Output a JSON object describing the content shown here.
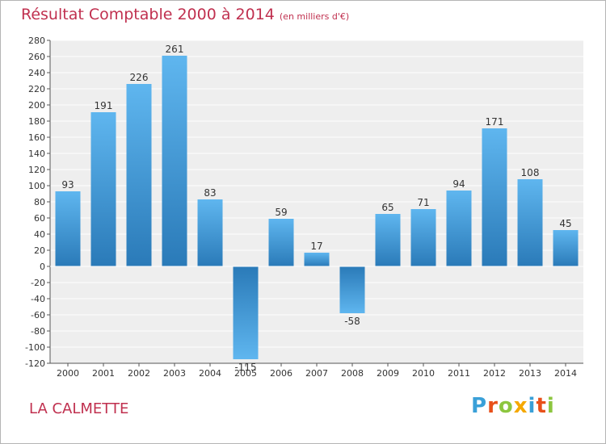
{
  "title": {
    "main": "Résultat Comptable 2000 à 2014",
    "unit": "(en milliers d'€)"
  },
  "commune": "LA CALMETTE",
  "logo": {
    "letters": [
      "P",
      "r",
      "o",
      "x",
      "i",
      "t",
      "i"
    ],
    "colors": [
      "#3aa0d8",
      "#e8501a",
      "#8cc63f",
      "#f5a800",
      "#3aa0d8",
      "#e8501a",
      "#8cc63f"
    ]
  },
  "colors": {
    "accent": "#c0304f",
    "bar_dark": "#2a7ab8",
    "bar_light": "#5fb6ef",
    "plot_bg": "#eeeeee",
    "grid": "#ffffff"
  },
  "chart_data": {
    "type": "bar",
    "title": "Résultat Comptable 2000 à 2014",
    "xlabel": "",
    "ylabel": "",
    "categories": [
      "2000",
      "2001",
      "2002",
      "2003",
      "2004",
      "2005",
      "2006",
      "2007",
      "2008",
      "2009",
      "2010",
      "2011",
      "2012",
      "2013",
      "2014"
    ],
    "values": [
      93,
      191,
      226,
      261,
      83,
      -115,
      59,
      17,
      -58,
      65,
      71,
      94,
      171,
      108,
      45
    ],
    "labels": [
      "93",
      "191",
      "226",
      "261",
      "83",
      "-115",
      "59",
      "17",
      "-58",
      "65",
      "71",
      "94",
      "171",
      "108",
      "45"
    ],
    "ylim": [
      -120,
      280
    ],
    "yticks": [
      280,
      260,
      240,
      220,
      200,
      180,
      160,
      140,
      120,
      100,
      80,
      60,
      40,
      20,
      0,
      -20,
      -40,
      -60,
      -80,
      -100,
      -120
    ],
    "grid": true
  }
}
